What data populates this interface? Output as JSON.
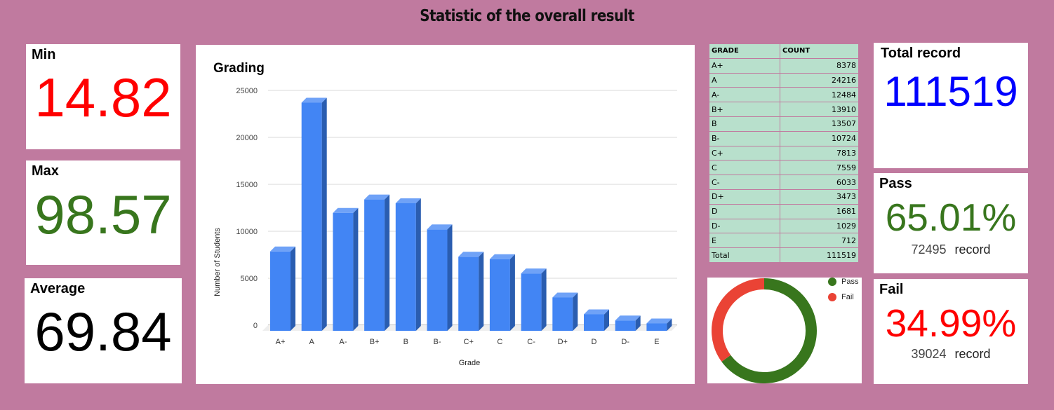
{
  "page_title": "Statistic of the overall result",
  "min": {
    "label": "Min",
    "value": "14.82",
    "color": "#ff0000"
  },
  "max": {
    "label": "Max",
    "value": "98.57",
    "color": "#38761d"
  },
  "average": {
    "label": "Average",
    "value": "69.84",
    "color": "#000000"
  },
  "total_record": {
    "label": "Total record",
    "value": "111519",
    "color": "#0000ff"
  },
  "pass": {
    "label": "Pass",
    "percent": "65.01%",
    "count": "72495",
    "unit": "record",
    "color": "#38761d"
  },
  "fail": {
    "label": "Fail",
    "percent": "34.99%",
    "count": "39024",
    "unit": "record",
    "color": "#ff0000"
  },
  "table": {
    "headers": [
      "GRADE",
      "COUNT"
    ],
    "rows": [
      {
        "grade": "A+",
        "count": "8378"
      },
      {
        "grade": "A",
        "count": "24216"
      },
      {
        "grade": "A-",
        "count": "12484"
      },
      {
        "grade": "B+",
        "count": "13910"
      },
      {
        "grade": "B",
        "count": "13507"
      },
      {
        "grade": "B-",
        "count": "10724"
      },
      {
        "grade": "C+",
        "count": "7813"
      },
      {
        "grade": "C",
        "count": "7559"
      },
      {
        "grade": "C-",
        "count": "6033"
      },
      {
        "grade": "D+",
        "count": "3473"
      },
      {
        "grade": "D",
        "count": "1681"
      },
      {
        "grade": "D-",
        "count": "1029"
      },
      {
        "grade": "E",
        "count": "712"
      },
      {
        "grade": "Total",
        "count": "111519"
      }
    ]
  },
  "chart_data": [
    {
      "type": "bar",
      "style": "3d",
      "title": "Grading",
      "xlabel": "Grade",
      "ylabel": "Number of Students",
      "ylim": [
        0,
        25000
      ],
      "yticks": [
        0,
        5000,
        10000,
        15000,
        20000,
        25000
      ],
      "grid": true,
      "bar_color": "#4285f4",
      "categories": [
        "A+",
        "A",
        "A-",
        "B+",
        "B",
        "B-",
        "C+",
        "C",
        "C-",
        "D+",
        "D",
        "D-",
        "E"
      ],
      "values": [
        8378,
        24216,
        12484,
        13910,
        13507,
        10724,
        7813,
        7559,
        6033,
        3473,
        1681,
        1029,
        712
      ]
    },
    {
      "type": "pie",
      "style": "donut",
      "labels": [
        "Pass",
        "Fail"
      ],
      "values": [
        72495,
        39024
      ],
      "colors": [
        "#38761d",
        "#ea4335"
      ],
      "legend": "top-right"
    }
  ]
}
